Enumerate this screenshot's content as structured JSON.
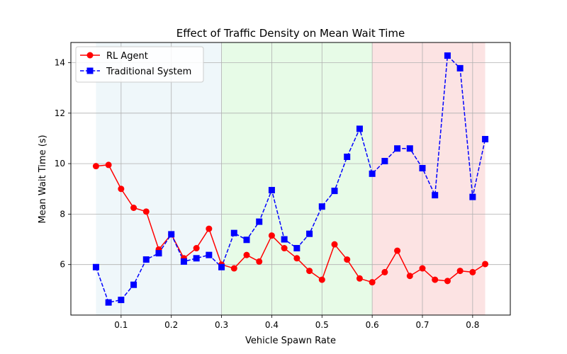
{
  "chart_data": {
    "type": "line",
    "title": "Effect of Traffic Density on Mean Wait Time",
    "xlabel": "Vehicle Spawn Rate",
    "ylabel": "Mean Wait Time (s)",
    "xlim": [
      0.0,
      0.875
    ],
    "ylim": [
      4.0,
      14.8
    ],
    "xticks": [
      0.1,
      0.2,
      0.3,
      0.4,
      0.5,
      0.6,
      0.7,
      0.8
    ],
    "yticks": [
      6,
      8,
      10,
      12,
      14
    ],
    "grid": true,
    "legend_position": "top-left",
    "shaded_regions": [
      {
        "x_start": 0.05,
        "x_end": 0.3,
        "color": "#add8e6",
        "opacity": 0.2
      },
      {
        "x_start": 0.3,
        "x_end": 0.6,
        "color": "#90ee90",
        "opacity": 0.22
      },
      {
        "x_start": 0.6,
        "x_end": 0.825,
        "color": "#f08080",
        "opacity": 0.22
      }
    ],
    "x": [
      0.05,
      0.075,
      0.1,
      0.125,
      0.15,
      0.175,
      0.2,
      0.225,
      0.25,
      0.275,
      0.3,
      0.325,
      0.35,
      0.375,
      0.4,
      0.425,
      0.45,
      0.475,
      0.5,
      0.525,
      0.55,
      0.575,
      0.6,
      0.625,
      0.65,
      0.675,
      0.7,
      0.725,
      0.75,
      0.775,
      0.8,
      0.825
    ],
    "series": [
      {
        "name": "RL Agent",
        "color": "#ff0000",
        "marker": "circle",
        "linestyle": "solid",
        "values": [
          9.9,
          9.95,
          9.0,
          8.25,
          8.1,
          6.6,
          7.2,
          6.25,
          6.65,
          7.42,
          6.0,
          5.85,
          6.38,
          6.12,
          7.15,
          6.65,
          6.25,
          5.75,
          5.4,
          6.8,
          6.2,
          5.45,
          5.3,
          5.7,
          6.55,
          5.55,
          5.85,
          5.4,
          5.35,
          5.75,
          5.7,
          6.02
        ]
      },
      {
        "name": "Traditional System",
        "color": "#0000ff",
        "marker": "square",
        "linestyle": "dashed",
        "values": [
          5.9,
          4.5,
          4.6,
          5.2,
          6.2,
          6.45,
          7.2,
          6.12,
          6.25,
          6.38,
          5.9,
          7.25,
          6.98,
          7.7,
          8.95,
          7.0,
          6.65,
          7.22,
          8.3,
          8.92,
          10.27,
          11.38,
          9.6,
          10.1,
          10.6,
          10.6,
          9.82,
          8.75,
          14.28,
          13.78,
          8.68,
          10.97
        ]
      }
    ]
  }
}
